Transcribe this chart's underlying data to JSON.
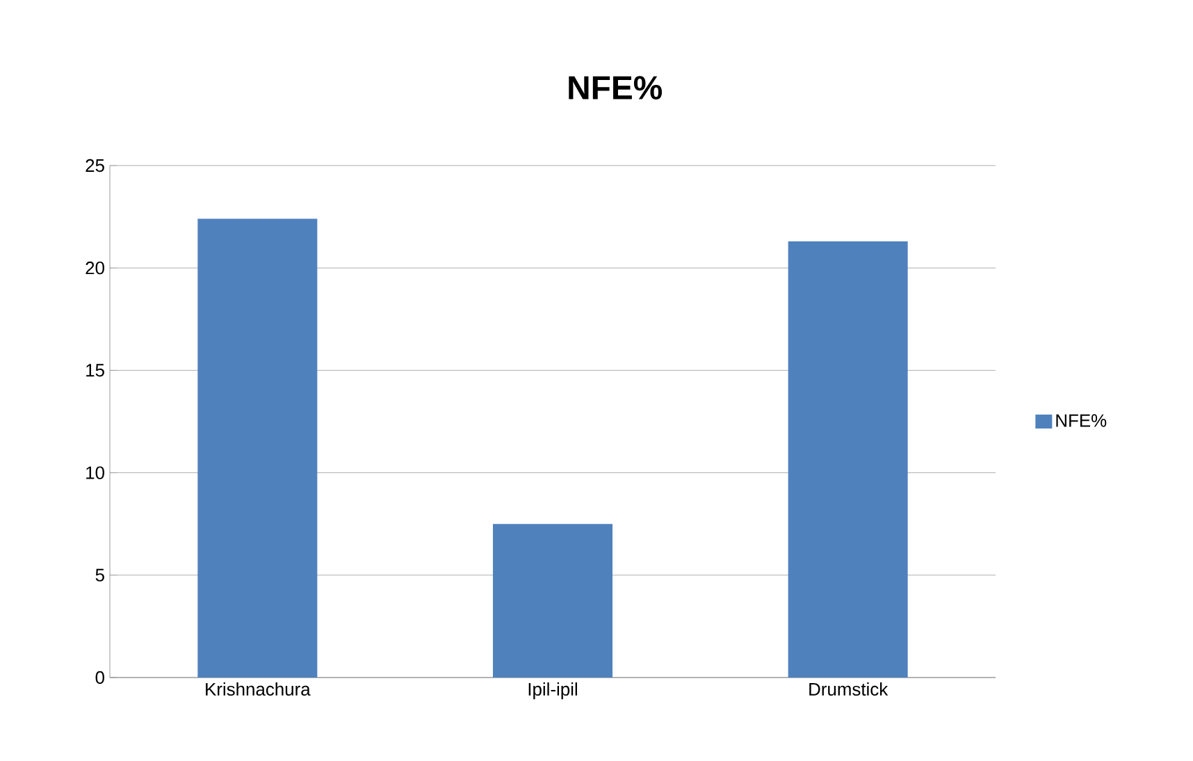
{
  "chart_data": {
    "type": "bar",
    "title": "NFE%",
    "categories": [
      "Krishnachura",
      "Ipil-ipil",
      "Drumstick"
    ],
    "series": [
      {
        "name": "NFE%",
        "color": "#4f81bd",
        "values": [
          22.4,
          7.5,
          21.3
        ]
      }
    ],
    "ylim": [
      0,
      25
    ],
    "yticks": [
      0,
      5,
      10,
      15,
      20,
      25
    ],
    "grid": "y",
    "legend": "right"
  }
}
